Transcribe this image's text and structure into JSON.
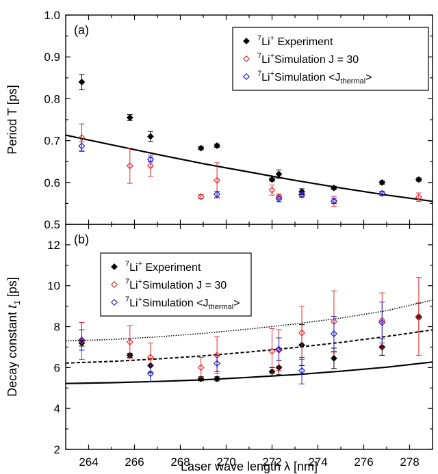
{
  "chart_data": [
    {
      "type": "scatter",
      "panel_label": "(a)",
      "ylabel": "Period T [ps]",
      "xlim": [
        263,
        279
      ],
      "ylim": [
        0.5,
        1.0
      ],
      "yticks": [
        "0.5",
        "0.6",
        "0.7",
        "0.8",
        "0.9",
        "1.0"
      ],
      "legend_placement": "top-right",
      "legend": [
        {
          "sup": "7",
          "base": "Li",
          "ion": "+",
          "label": " Experiment",
          "sub": "",
          "tail": "",
          "color": "#000000",
          "marker": "diamond-filled"
        },
        {
          "sup": "7",
          "base": "Li",
          "ion": "+",
          "label": "Simulation J = 30",
          "sub": "",
          "tail": "",
          "color": "#e8262a",
          "marker": "diamond-open"
        },
        {
          "sup": "7",
          "base": "Li",
          "ion": "+",
          "label": "Simulation <J",
          "sub": "thermal",
          "tail": ">",
          "color": "#1b1bd6",
          "marker": "diamond-open"
        }
      ],
      "series": [
        {
          "x": [
            263.7,
            265.8,
            266.7,
            268.9,
            269.6,
            272.0,
            272.3,
            273.3,
            274.7,
            276.8,
            278.4
          ],
          "y": [
            0.84,
            0.755,
            0.71,
            0.682,
            0.688,
            0.607,
            0.62,
            0.578,
            0.587,
            0.6,
            0.607
          ],
          "err": [
            0.018,
            0.007,
            0.012,
            0.004,
            0.004,
            0.004,
            0.01,
            0.007,
            0.004,
            0.004,
            0.004
          ]
        },
        {
          "x": [
            263.7,
            265.8,
            266.7,
            268.9,
            269.6,
            272.0,
            272.3,
            273.3,
            274.7,
            276.8,
            278.4
          ],
          "y": [
            0.707,
            0.64,
            0.64,
            0.566,
            0.605,
            0.582,
            0.566,
            0.57,
            0.555,
            0.574,
            0.565
          ],
          "err": [
            0.033,
            0.042,
            0.025,
            0.005,
            0.042,
            0.012,
            0.006,
            0.005,
            0.012,
            0.005,
            0.01
          ]
        },
        {
          "x": [
            263.7,
            266.7,
            269.6,
            272.3,
            273.3,
            274.7,
            276.8
          ],
          "y": [
            0.687,
            0.655,
            0.572,
            0.561,
            0.571,
            0.556,
            0.574
          ],
          "err": [
            0.01,
            0.006,
            0.007,
            0.007,
            0.006,
            0.006,
            0.005
          ]
        }
      ],
      "curves": [
        {
          "style": "solid",
          "x": [
            263,
            265,
            267,
            269,
            271,
            273,
            275,
            277,
            279
          ],
          "y": [
            0.713,
            0.69,
            0.667,
            0.645,
            0.625,
            0.605,
            0.587,
            0.57,
            0.555
          ]
        }
      ]
    },
    {
      "type": "scatter",
      "panel_label": "(b)",
      "xlabel": "Laser wave length λ [nm]",
      "ylabel": "Decay constant",
      "ylabel_symbol": "t",
      "ylabel_sub": "1",
      "ylabel_unit": " [ps]",
      "xlim": [
        263,
        279
      ],
      "ylim": [
        2,
        13
      ],
      "xticks": [
        "264",
        "266",
        "268",
        "270",
        "272",
        "274",
        "276",
        "278"
      ],
      "yticks": [
        "2",
        "4",
        "6",
        "8",
        "10",
        "12"
      ],
      "legend_placement": "top-left",
      "legend": [
        {
          "sup": "7",
          "base": "Li",
          "ion": "+",
          "label": " Experiment",
          "sub": "",
          "tail": "",
          "color": "#000000",
          "marker": "diamond-filled"
        },
        {
          "sup": "7",
          "base": "Li",
          "ion": "+",
          "label": "Simulation J = 30",
          "sub": "",
          "tail": "",
          "color": "#e8262a",
          "marker": "diamond-open"
        },
        {
          "sup": "7",
          "base": "Li",
          "ion": "+",
          "label": "Simulation <J",
          "sub": "thermal",
          "tail": ">",
          "color": "#1b1bd6",
          "marker": "diamond-open"
        }
      ],
      "series": [
        {
          "x": [
            263.7,
            265.8,
            266.7,
            268.9,
            269.6,
            272.0,
            272.3,
            273.3,
            274.7,
            276.8,
            278.4
          ],
          "y": [
            7.2,
            6.6,
            6.1,
            5.45,
            5.45,
            5.8,
            6.0,
            7.1,
            6.45,
            7.0,
            8.45
          ],
          "err": [
            0.15,
            0.1,
            0.35,
            0.1,
            0.1,
            0.2,
            0.35,
            1.0,
            0.5,
            0.4,
            0.7
          ]
        },
        {
          "x": [
            263.7,
            265.8,
            266.7,
            268.9,
            269.6,
            272.0,
            272.3,
            273.3,
            274.7,
            276.8,
            278.4
          ],
          "y": [
            7.3,
            7.25,
            6.5,
            6.0,
            6.6,
            6.8,
            6.85,
            7.7,
            8.25,
            8.3,
            8.5
          ],
          "err": [
            0.9,
            0.8,
            0.7,
            0.5,
            0.9,
            1.1,
            1.0,
            1.3,
            1.5,
            1.35,
            1.9
          ]
        },
        {
          "x": [
            263.7,
            266.7,
            269.6,
            272.3,
            273.3,
            274.7,
            276.8
          ],
          "y": [
            7.35,
            5.7,
            6.2,
            6.9,
            5.85,
            7.65,
            8.2
          ],
          "err": [
            0.5,
            0.4,
            0.4,
            0.55,
            0.65,
            0.85,
            1.0
          ]
        }
      ],
      "curves": [
        {
          "style": "solid",
          "x": [
            263,
            265,
            267,
            269,
            271,
            273,
            275,
            277,
            279
          ],
          "y": [
            5.22,
            5.26,
            5.32,
            5.4,
            5.52,
            5.65,
            5.82,
            6.02,
            6.27
          ]
        },
        {
          "style": "dashed",
          "x": [
            263,
            265,
            267,
            269,
            271,
            273,
            275,
            277,
            279
          ],
          "y": [
            6.22,
            6.3,
            6.42,
            6.57,
            6.76,
            6.98,
            7.23,
            7.52,
            7.84
          ]
        },
        {
          "style": "dotted",
          "x": [
            263,
            265,
            267,
            269,
            271,
            273,
            275,
            277,
            279
          ],
          "y": [
            7.3,
            7.37,
            7.5,
            7.67,
            7.88,
            8.13,
            8.42,
            8.78,
            9.3
          ]
        }
      ]
    }
  ]
}
